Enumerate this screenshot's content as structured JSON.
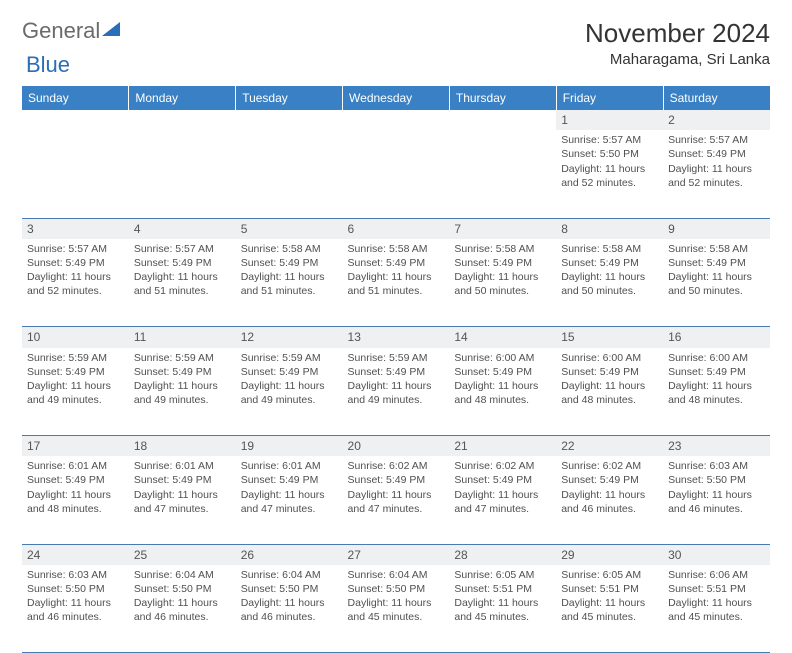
{
  "logo": {
    "word1": "General",
    "word2": "Blue"
  },
  "title": "November 2024",
  "location": "Maharagama, Sri Lanka",
  "styling": {
    "header_bg": "#3a80c4",
    "header_fg": "#ffffff",
    "daynum_bg": "#eef0f2",
    "border_color": "#4a7bb0",
    "body_font_size": 10.5,
    "header_font_size": 12,
    "title_font_size": 26
  },
  "weekdays": [
    "Sunday",
    "Monday",
    "Tuesday",
    "Wednesday",
    "Thursday",
    "Friday",
    "Saturday"
  ],
  "weeks": [
    [
      null,
      null,
      null,
      null,
      null,
      {
        "n": "1",
        "sr": "5:57 AM",
        "ss": "5:50 PM",
        "dl": "11 hours and 52 minutes."
      },
      {
        "n": "2",
        "sr": "5:57 AM",
        "ss": "5:49 PM",
        "dl": "11 hours and 52 minutes."
      }
    ],
    [
      {
        "n": "3",
        "sr": "5:57 AM",
        "ss": "5:49 PM",
        "dl": "11 hours and 52 minutes."
      },
      {
        "n": "4",
        "sr": "5:57 AM",
        "ss": "5:49 PM",
        "dl": "11 hours and 51 minutes."
      },
      {
        "n": "5",
        "sr": "5:58 AM",
        "ss": "5:49 PM",
        "dl": "11 hours and 51 minutes."
      },
      {
        "n": "6",
        "sr": "5:58 AM",
        "ss": "5:49 PM",
        "dl": "11 hours and 51 minutes."
      },
      {
        "n": "7",
        "sr": "5:58 AM",
        "ss": "5:49 PM",
        "dl": "11 hours and 50 minutes."
      },
      {
        "n": "8",
        "sr": "5:58 AM",
        "ss": "5:49 PM",
        "dl": "11 hours and 50 minutes."
      },
      {
        "n": "9",
        "sr": "5:58 AM",
        "ss": "5:49 PM",
        "dl": "11 hours and 50 minutes."
      }
    ],
    [
      {
        "n": "10",
        "sr": "5:59 AM",
        "ss": "5:49 PM",
        "dl": "11 hours and 49 minutes."
      },
      {
        "n": "11",
        "sr": "5:59 AM",
        "ss": "5:49 PM",
        "dl": "11 hours and 49 minutes."
      },
      {
        "n": "12",
        "sr": "5:59 AM",
        "ss": "5:49 PM",
        "dl": "11 hours and 49 minutes."
      },
      {
        "n": "13",
        "sr": "5:59 AM",
        "ss": "5:49 PM",
        "dl": "11 hours and 49 minutes."
      },
      {
        "n": "14",
        "sr": "6:00 AM",
        "ss": "5:49 PM",
        "dl": "11 hours and 48 minutes."
      },
      {
        "n": "15",
        "sr": "6:00 AM",
        "ss": "5:49 PM",
        "dl": "11 hours and 48 minutes."
      },
      {
        "n": "16",
        "sr": "6:00 AM",
        "ss": "5:49 PM",
        "dl": "11 hours and 48 minutes."
      }
    ],
    [
      {
        "n": "17",
        "sr": "6:01 AM",
        "ss": "5:49 PM",
        "dl": "11 hours and 48 minutes."
      },
      {
        "n": "18",
        "sr": "6:01 AM",
        "ss": "5:49 PM",
        "dl": "11 hours and 47 minutes."
      },
      {
        "n": "19",
        "sr": "6:01 AM",
        "ss": "5:49 PM",
        "dl": "11 hours and 47 minutes."
      },
      {
        "n": "20",
        "sr": "6:02 AM",
        "ss": "5:49 PM",
        "dl": "11 hours and 47 minutes."
      },
      {
        "n": "21",
        "sr": "6:02 AM",
        "ss": "5:49 PM",
        "dl": "11 hours and 47 minutes."
      },
      {
        "n": "22",
        "sr": "6:02 AM",
        "ss": "5:49 PM",
        "dl": "11 hours and 46 minutes."
      },
      {
        "n": "23",
        "sr": "6:03 AM",
        "ss": "5:50 PM",
        "dl": "11 hours and 46 minutes."
      }
    ],
    [
      {
        "n": "24",
        "sr": "6:03 AM",
        "ss": "5:50 PM",
        "dl": "11 hours and 46 minutes."
      },
      {
        "n": "25",
        "sr": "6:04 AM",
        "ss": "5:50 PM",
        "dl": "11 hours and 46 minutes."
      },
      {
        "n": "26",
        "sr": "6:04 AM",
        "ss": "5:50 PM",
        "dl": "11 hours and 46 minutes."
      },
      {
        "n": "27",
        "sr": "6:04 AM",
        "ss": "5:50 PM",
        "dl": "11 hours and 45 minutes."
      },
      {
        "n": "28",
        "sr": "6:05 AM",
        "ss": "5:51 PM",
        "dl": "11 hours and 45 minutes."
      },
      {
        "n": "29",
        "sr": "6:05 AM",
        "ss": "5:51 PM",
        "dl": "11 hours and 45 minutes."
      },
      {
        "n": "30",
        "sr": "6:06 AM",
        "ss": "5:51 PM",
        "dl": "11 hours and 45 minutes."
      }
    ]
  ],
  "labels": {
    "sunrise": "Sunrise: ",
    "sunset": "Sunset: ",
    "daylight": "Daylight: "
  }
}
